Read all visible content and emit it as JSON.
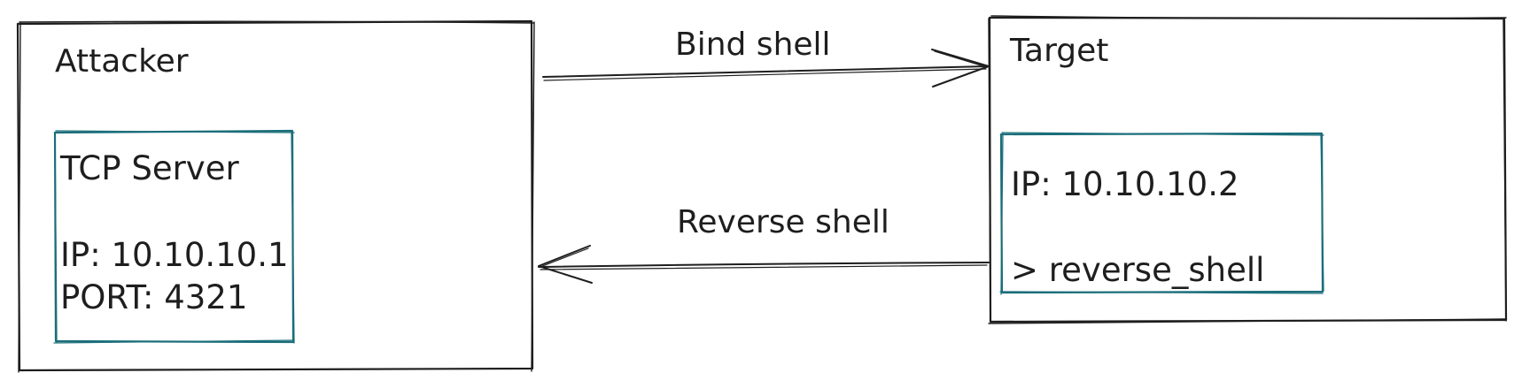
{
  "colors": {
    "stroke": "#1e1e1e",
    "inner_box": "#1b6e7a",
    "background": "#ffffff"
  },
  "attacker": {
    "title": "Attacker",
    "server": {
      "title": "TCP Server",
      "ip": "IP: 10.10.10.1",
      "port": "PORT: 4321"
    }
  },
  "target": {
    "title": "Target",
    "ip": "IP: 10.10.10.2",
    "command": "> reverse_shell"
  },
  "edges": {
    "bind": "Bind shell",
    "reverse": "Reverse shell"
  }
}
